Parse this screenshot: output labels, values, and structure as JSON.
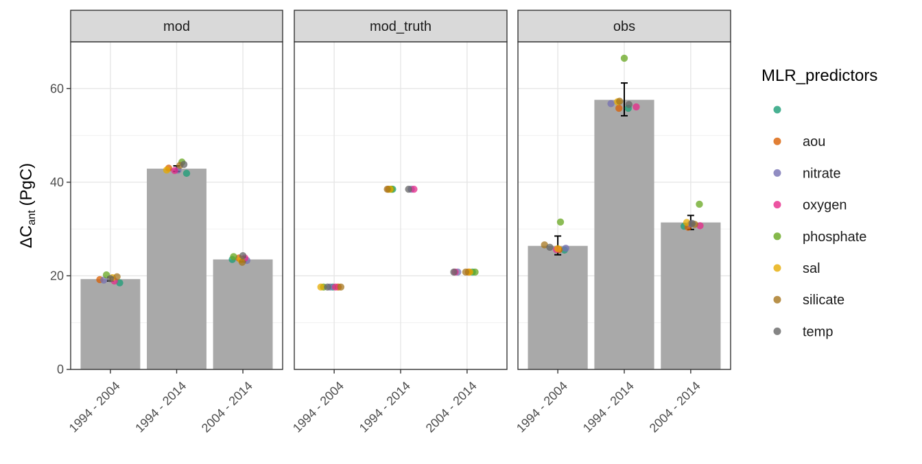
{
  "chart_data": {
    "type": "bar",
    "ylabel_prefix": "ΔC",
    "ylabel_sub": "ant",
    "ylabel_unit": "(PgC)",
    "ylim": [
      0,
      70
    ],
    "yticks": [
      0,
      20,
      40,
      60
    ],
    "categories": [
      "1994 - 2004",
      "1994 - 2014",
      "2004 - 2014"
    ],
    "grid": true,
    "legend": {
      "title": "MLR_predictors",
      "position": "right",
      "entries": [
        {
          "label": "",
          "color": "#1b9e77"
        },
        {
          "label": "aou",
          "color": "#d95f02"
        },
        {
          "label": "nitrate",
          "color": "#7570b3"
        },
        {
          "label": "oxygen",
          "color": "#e7298a"
        },
        {
          "label": "phosphate",
          "color": "#66a61e"
        },
        {
          "label": "sal",
          "color": "#e6ab02"
        },
        {
          "label": "silicate",
          "color": "#a6761d"
        },
        {
          "label": "temp",
          "color": "#666666"
        }
      ]
    },
    "bar_color": "#a9a9a9",
    "panels": [
      {
        "name": "mod",
        "bars": [
          19.3,
          42.9,
          23.5
        ],
        "errorbars": [
          {
            "ymin": 18.9,
            "ymax": 19.7
          },
          {
            "ymin": 42.3,
            "ymax": 43.5
          },
          {
            "ymin": 23.0,
            "ymax": 24.0
          }
        ],
        "points": [
          [
            {
              "p": 0,
              "y": 18.5,
              "dx": 0.14
            },
            {
              "p": 1,
              "y": 19.2,
              "dx": -0.16
            },
            {
              "p": 2,
              "y": 19.1,
              "dx": -0.1
            },
            {
              "p": 3,
              "y": 18.9,
              "dx": 0.06
            },
            {
              "p": 4,
              "y": 20.2,
              "dx": -0.06
            },
            {
              "p": 5,
              "y": 19.6,
              "dx": 0.03
            },
            {
              "p": 6,
              "y": 19.8,
              "dx": 0.1
            },
            {
              "p": 7,
              "y": 19.4,
              "dx": 0.0
            }
          ],
          [
            {
              "p": 0,
              "y": 41.9,
              "dx": 0.15
            },
            {
              "p": 1,
              "y": 43.0,
              "dx": -0.12
            },
            {
              "p": 2,
              "y": 42.6,
              "dx": 0.02
            },
            {
              "p": 3,
              "y": 42.5,
              "dx": -0.03
            },
            {
              "p": 4,
              "y": 44.3,
              "dx": 0.08
            },
            {
              "p": 5,
              "y": 42.6,
              "dx": -0.15
            },
            {
              "p": 6,
              "y": 43.6,
              "dx": 0.05
            },
            {
              "p": 7,
              "y": 43.8,
              "dx": 0.11
            }
          ],
          [
            {
              "p": 0,
              "y": 23.5,
              "dx": -0.16
            },
            {
              "p": 1,
              "y": 23.8,
              "dx": -0.06
            },
            {
              "p": 2,
              "y": 23.3,
              "dx": 0.06
            },
            {
              "p": 3,
              "y": 23.8,
              "dx": 0.03
            },
            {
              "p": 4,
              "y": 24.1,
              "dx": -0.14
            },
            {
              "p": 5,
              "y": 23.4,
              "dx": -0.03
            },
            {
              "p": 6,
              "y": 22.9,
              "dx": -0.01
            },
            {
              "p": 7,
              "y": 24.3,
              "dx": 0.0
            }
          ]
        ]
      },
      {
        "name": "mod_truth",
        "bars": [],
        "errorbars": [],
        "points": [
          [
            {
              "p": 0,
              "y": 17.6,
              "dx": -0.02
            },
            {
              "p": 1,
              "y": 17.6,
              "dx": 0.06
            },
            {
              "p": 2,
              "y": 17.6,
              "dx": -0.06
            },
            {
              "p": 3,
              "y": 17.6,
              "dx": 0.02
            },
            {
              "p": 4,
              "y": 17.6,
              "dx": -0.16
            },
            {
              "p": 5,
              "y": 17.6,
              "dx": -0.2
            },
            {
              "p": 6,
              "y": 17.6,
              "dx": 0.1
            },
            {
              "p": 7,
              "y": 17.6,
              "dx": -0.1
            }
          ],
          [
            {
              "p": 0,
              "y": 38.5,
              "dx": -0.12
            },
            {
              "p": 1,
              "y": 38.5,
              "dx": -0.18
            },
            {
              "p": 2,
              "y": 38.5,
              "dx": 0.16
            },
            {
              "p": 3,
              "y": 38.5,
              "dx": 0.2
            },
            {
              "p": 4,
              "y": 38.5,
              "dx": -0.14
            },
            {
              "p": 5,
              "y": 38.5,
              "dx": -0.16
            },
            {
              "p": 6,
              "y": 38.5,
              "dx": -0.2
            },
            {
              "p": 7,
              "y": 38.5,
              "dx": 0.12
            }
          ],
          [
            {
              "p": 0,
              "y": 20.8,
              "dx": 0.08
            },
            {
              "p": 1,
              "y": 20.8,
              "dx": 0.02
            },
            {
              "p": 2,
              "y": 20.8,
              "dx": -0.14
            },
            {
              "p": 3,
              "y": 20.8,
              "dx": -0.18
            },
            {
              "p": 4,
              "y": 20.8,
              "dx": 0.12
            },
            {
              "p": 5,
              "y": 20.8,
              "dx": 0.04
            },
            {
              "p": 6,
              "y": 20.8,
              "dx": -0.02
            },
            {
              "p": 7,
              "y": 20.8,
              "dx": -0.2
            }
          ]
        ]
      },
      {
        "name": "obs",
        "bars": [
          26.4,
          57.6,
          31.4
        ],
        "errorbars": [
          {
            "ymin": 24.5,
            "ymax": 28.5
          },
          {
            "ymin": 54.2,
            "ymax": 61.2
          },
          {
            "ymin": 29.9,
            "ymax": 32.9
          }
        ],
        "points": [
          [
            {
              "p": 0,
              "y": 25.5,
              "dx": 0.1
            },
            {
              "p": 1,
              "y": 25.6,
              "dx": 0.02
            },
            {
              "p": 2,
              "y": 25.9,
              "dx": 0.12
            },
            {
              "p": 3,
              "y": 25.6,
              "dx": -0.02
            },
            {
              "p": 4,
              "y": 31.5,
              "dx": 0.04
            },
            {
              "p": 5,
              "y": 25.8,
              "dx": 0.0
            },
            {
              "p": 6,
              "y": 26.6,
              "dx": -0.2
            },
            {
              "p": 7,
              "y": 26.1,
              "dx": -0.12
            }
          ],
          [
            {
              "p": 0,
              "y": 55.8,
              "dx": 0.06
            },
            {
              "p": 1,
              "y": 55.8,
              "dx": -0.08
            },
            {
              "p": 2,
              "y": 56.8,
              "dx": -0.2
            },
            {
              "p": 3,
              "y": 56.1,
              "dx": 0.18
            },
            {
              "p": 4,
              "y": 66.5,
              "dx": 0.0
            },
            {
              "p": 5,
              "y": 57.2,
              "dx": -0.1
            },
            {
              "p": 6,
              "y": 57.3,
              "dx": -0.07
            },
            {
              "p": 7,
              "y": 56.6,
              "dx": 0.07
            }
          ],
          [
            {
              "p": 0,
              "y": 30.6,
              "dx": -0.1
            },
            {
              "p": 1,
              "y": 30.4,
              "dx": -0.04
            },
            {
              "p": 2,
              "y": 31.1,
              "dx": 0.0
            },
            {
              "p": 3,
              "y": 30.7,
              "dx": 0.14
            },
            {
              "p": 4,
              "y": 35.3,
              "dx": 0.13
            },
            {
              "p": 5,
              "y": 31.4,
              "dx": -0.06
            },
            {
              "p": 6,
              "y": 31.0,
              "dx": 0.06
            },
            {
              "p": 7,
              "y": 31.2,
              "dx": 0.02
            }
          ]
        ]
      }
    ]
  }
}
